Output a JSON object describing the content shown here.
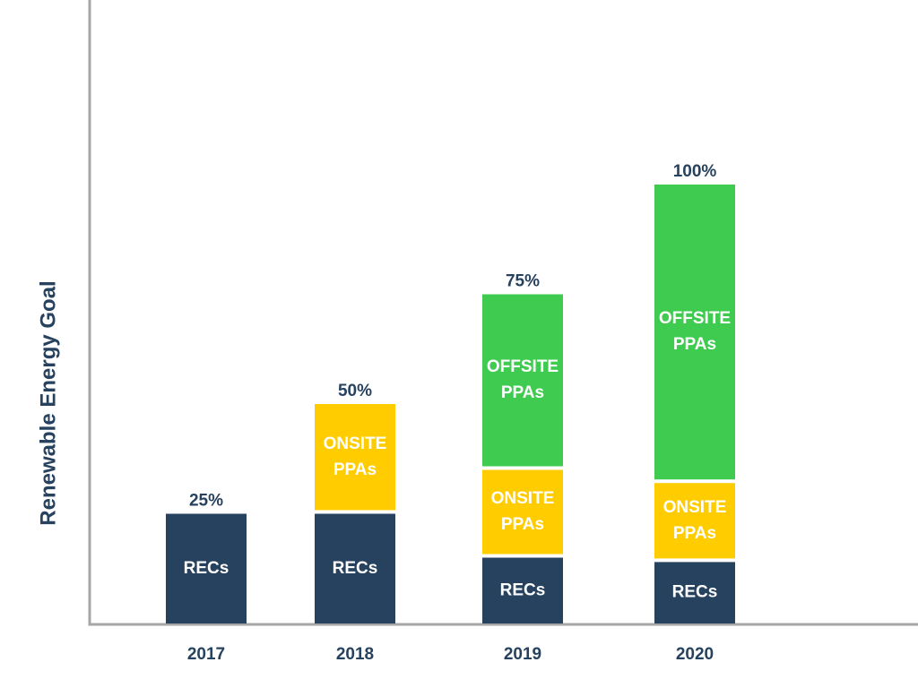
{
  "chart_data": {
    "type": "bar",
    "stacked": true,
    "categories": [
      "2017",
      "2018",
      "2019",
      "2020"
    ],
    "series": [
      {
        "name": "RECs",
        "color": "#27425f",
        "values": [
          25,
          25,
          15,
          14
        ]
      },
      {
        "name": "ONSITE PPAs",
        "color": "#ffcc00",
        "values": [
          null,
          25,
          20,
          18
        ]
      },
      {
        "name": "OFFSITE PPAs",
        "color": "#3ecb4f",
        "values": [
          null,
          null,
          40,
          68
        ]
      }
    ],
    "total_labels": [
      "25%",
      "50%",
      "75%",
      "100%"
    ],
    "title": "",
    "xlabel": "",
    "ylabel": "Renewable Energy Goal",
    "grid": false,
    "legend": "none"
  },
  "colors": {
    "axis": "#a6a6a6",
    "label_text": "#27425f",
    "segment_text": "#ffffff",
    "background": "#ffffff"
  }
}
